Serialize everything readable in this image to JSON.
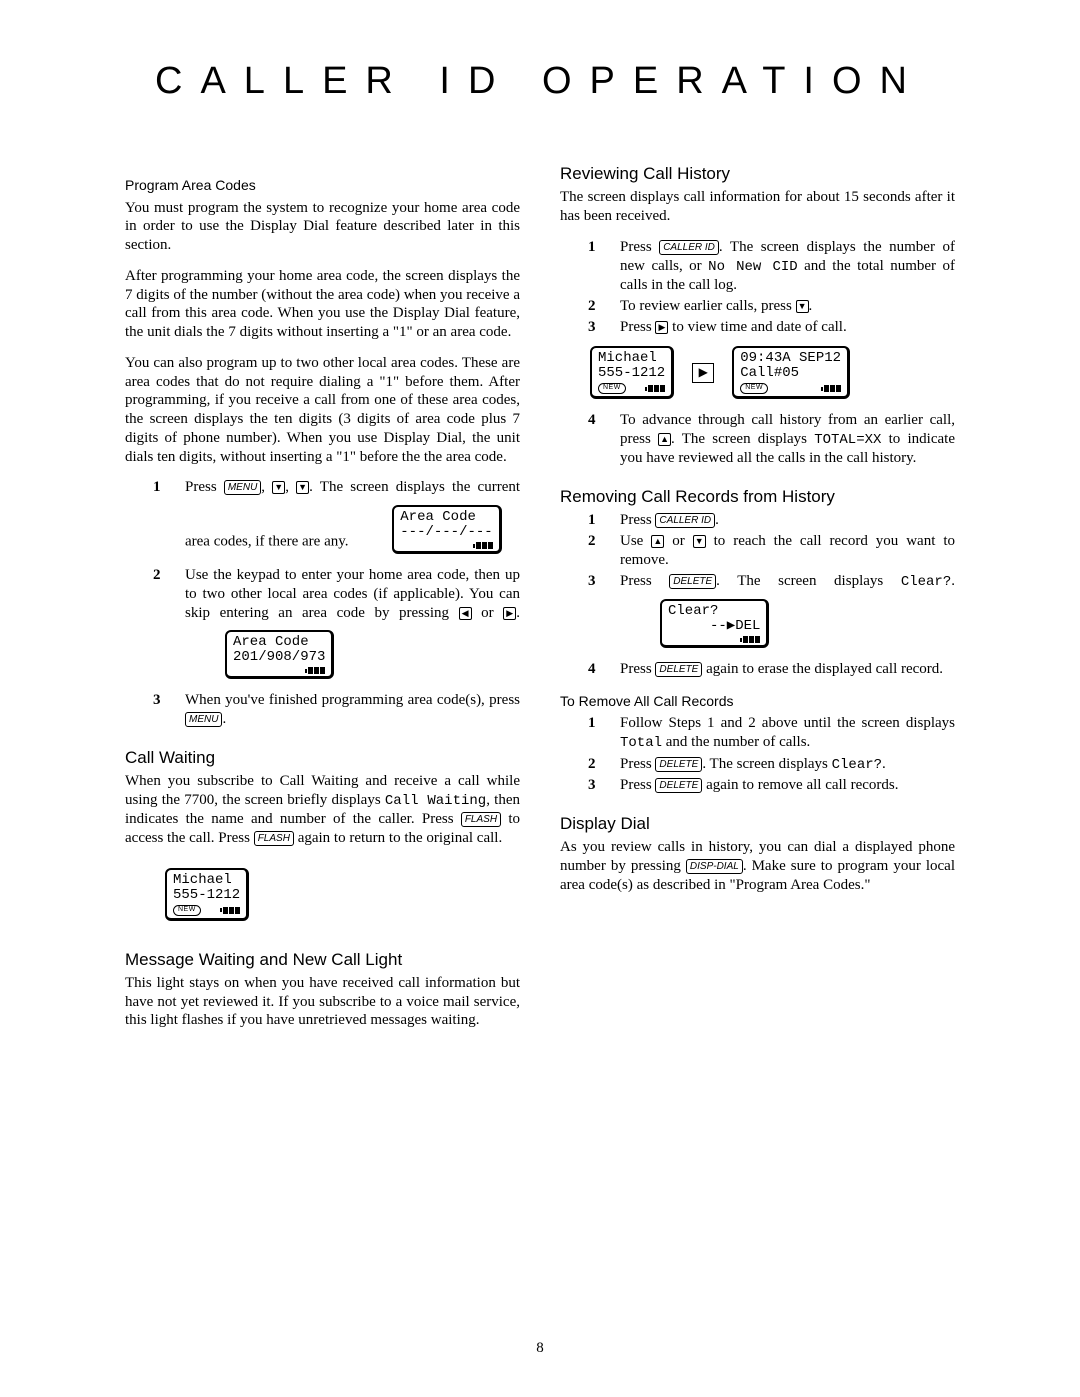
{
  "title": "CALLER ID OPERATION",
  "page_number": "8",
  "buttons": {
    "menu": "MENU",
    "flash": "FLASH",
    "caller_id": "CALLER ID",
    "delete": "DELETE",
    "disp_dial": "DISP-DIAL"
  },
  "arrows": {
    "down": "▼",
    "up": "▲",
    "left": "◀",
    "right": "▶"
  },
  "lcd_badges": {
    "new": "NEW"
  },
  "left": {
    "program_area_codes": {
      "heading": "Program Area Codes",
      "p1": "You must program the system to recognize your home area code in order to use the Display Dial feature described later in this section.",
      "p2": "After programming your home area code, the screen displays the 7 digits of the number (without the area code) when you receive a call from this area code.  When you use the Display Dial feature, the unit dials the 7 digits without inserting a \"1\" or an area code.",
      "p3": "You can also program up to two other local area codes.  These are area codes that do not require dialing a \"1\" before them.  After programming, if you receive a call from one of these area codes, the screen displays the ten digits (3 digits of area code plus 7 digits of phone number). When you use Display Dial, the unit dials ten digits, without inserting a \"1\" before the the area code.",
      "step1_a": "Press ",
      "step1_b": ", ",
      "step1_c": ", ",
      "step1_d": ". The screen displays the current area codes, if there are any.",
      "lcd1_line1": "Area Code",
      "lcd1_line2": "---/---/---",
      "step2_a": "Use the keypad to enter your home area code, then up to two other local area codes (if applicable).  You can skip entering an area code by pressing ",
      "step2_b": " or ",
      "step2_c": ".",
      "lcd2_line1": "Area Code",
      "lcd2_line2": "201/908/973",
      "step3_a": "When you've finished  programming area code(s), press ",
      "step3_b": "."
    },
    "call_waiting": {
      "heading": "Call Waiting",
      "p_a": "When you subscribe to Call Waiting and receive a call while using the 7700, the screen briefly displays ",
      "p_mono1": "Call Waiting",
      "p_b": ", then indicates the name and number of the caller.  Press ",
      "p_c": " to access the call.  Press ",
      "p_d": " again to return to the original call.",
      "lcd_line1": "Michael",
      "lcd_line2": "555-1212"
    },
    "msg_light": {
      "heading": "Message Waiting and New Call Light",
      "p": "This light stays on when you have received call information but have not yet reviewed it.  If you subscribe to a voice mail service, this light flashes if you have unretrieved messages waiting."
    }
  },
  "right": {
    "review": {
      "heading": "Reviewing Call History",
      "p": "The screen displays call information for about 15 seconds after it has been received.",
      "s1a": "Press ",
      "s1b": ".  The screen displays the number of new calls, or ",
      "s1_mono": "No New CID",
      "s1c": " and the total number of calls in the call log.",
      "s2a": "To review earlier calls, press ",
      "s2b": ".",
      "s3a": "Press ",
      "s3b": " to view time and date of call.",
      "lcdA_line1": "Michael",
      "lcdA_line2": "555-1212",
      "lcdB_line1": "09:43A SEP12",
      "lcdB_line2": "Call#05",
      "s4a": "To advance through call history from an earlier call, press ",
      "s4b": ".  The screen displays ",
      "s4_mono": "TOTAL=XX",
      "s4c": " to indicate you have reviewed all the calls in the call history."
    },
    "remove": {
      "heading": "Removing Call Records from History",
      "s1a": "Press ",
      "s1b": ".",
      "s2a": "Use ",
      "s2b": " or ",
      "s2c": " to reach the call record you want to remove.",
      "s3a": "Press ",
      "s3b": ". The screen displays ",
      "s3_mono": "Clear?",
      "s3c": ".",
      "lcd_line1": "Clear?",
      "lcd_line2": "     --▶DEL",
      "s4a": "Press ",
      "s4b": " again to erase the displayed call record."
    },
    "remove_all": {
      "heading": "To Remove All Call Records",
      "s1a": "Follow Steps 1 and 2 above until the screen displays ",
      "s1_mono": "Total",
      "s1b": " and the number of calls.",
      "s2a": "Press ",
      "s2b": ".  The screen displays ",
      "s2_mono": "Clear?",
      "s2c": ".",
      "s3a": "Press ",
      "s3b": " again to remove all call records."
    },
    "display_dial": {
      "heading": "Display Dial",
      "p_a": "As you review calls in history, you can dial a displayed phone number by pressing ",
      "p_b": ".  Make sure to program your local area code(s) as described in \"Program Area Codes.\""
    }
  }
}
